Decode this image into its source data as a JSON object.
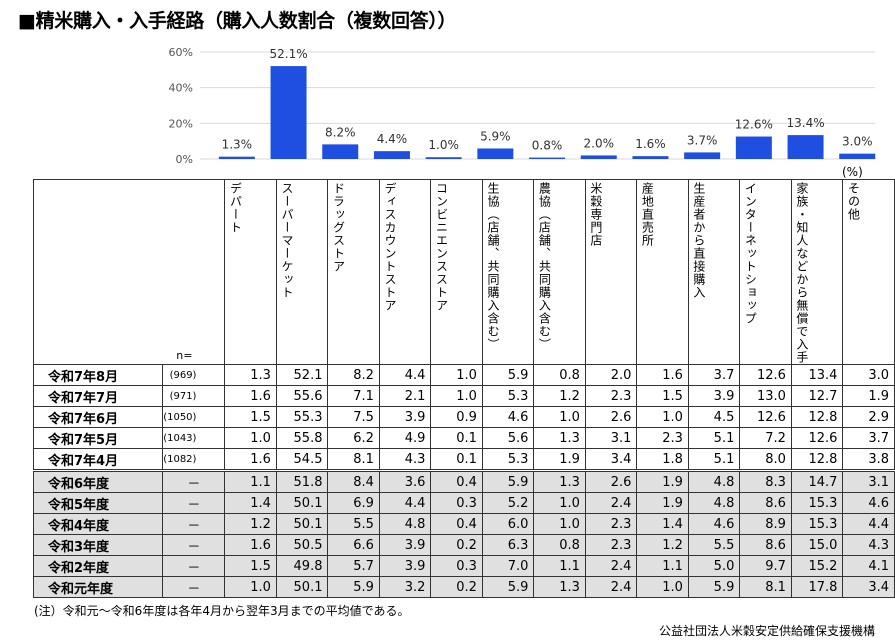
{
  "title": "■精米購入・入手経路（購入人数割合（複数回答））",
  "unit": "(%)",
  "n_label": "n=",
  "chart_data": {
    "type": "bar",
    "categories": [
      "デパート",
      "スーパーマーケット",
      "ドラッグストア",
      "ディスカウントストア",
      "コンビニエンスストア",
      "生協（店舗、共同購入含む）",
      "農協（店舗、共同購入含む）",
      "米穀専門店",
      "産地直売所",
      "生産者から直接購入",
      "インターネットショップ",
      "家族・知人などから無償で入手",
      "その他"
    ],
    "values": [
      1.3,
      52.1,
      8.2,
      4.4,
      1.0,
      5.9,
      0.8,
      2.0,
      1.6,
      3.7,
      12.6,
      13.4,
      3.0
    ],
    "value_labels": [
      "1.3%",
      "52.1%",
      "8.2%",
      "4.4%",
      "1.0%",
      "5.9%",
      "0.8%",
      "2.0%",
      "1.6%",
      "3.7%",
      "12.6%",
      "13.4%",
      "3.0%"
    ],
    "yticks": [
      "0%",
      "20%",
      "40%",
      "60%"
    ],
    "ylim": [
      0,
      60
    ],
    "bar_color": "#1f4fe0",
    "grid": true
  },
  "headers": [
    "デパート",
    "スーパーマーケット",
    "ドラッグストア",
    "ディスカウントストア",
    "コンビニエンスストア",
    "生協\n（店舗、共同購入含む）",
    "農協\n（店舗、共同購入含む）",
    "米穀専門店",
    "産地直売所",
    "生産者から直接購入",
    "インターネットショップ",
    "家族・知人などから\n無償で入手",
    "その他"
  ],
  "rows": [
    {
      "label": "令和7年8月",
      "n": "(969)",
      "values": [
        "1.3",
        "52.1",
        "8.2",
        "4.4",
        "1.0",
        "5.9",
        "0.8",
        "2.0",
        "1.6",
        "3.7",
        "12.6",
        "13.4",
        "3.0"
      ]
    },
    {
      "label": "令和7年7月",
      "n": "(971)",
      "values": [
        "1.6",
        "55.6",
        "7.1",
        "2.1",
        "1.0",
        "5.3",
        "1.2",
        "2.3",
        "1.5",
        "3.9",
        "13.0",
        "12.7",
        "1.9"
      ]
    },
    {
      "label": "令和7年6月",
      "n": "(1050)",
      "values": [
        "1.5",
        "55.3",
        "7.5",
        "3.9",
        "0.9",
        "4.6",
        "1.0",
        "2.6",
        "1.0",
        "4.5",
        "12.6",
        "12.8",
        "2.9"
      ]
    },
    {
      "label": "令和7年5月",
      "n": "(1043)",
      "values": [
        "1.0",
        "55.8",
        "6.2",
        "4.9",
        "0.1",
        "5.6",
        "1.3",
        "3.1",
        "2.3",
        "5.1",
        "7.2",
        "12.6",
        "3.7"
      ]
    },
    {
      "label": "令和7年4月",
      "n": "(1082)",
      "values": [
        "1.6",
        "54.5",
        "8.1",
        "4.3",
        "0.1",
        "5.3",
        "1.9",
        "3.4",
        "1.8",
        "5.1",
        "8.0",
        "12.8",
        "3.8"
      ]
    },
    {
      "label": "令和6年度",
      "n": "－",
      "values": [
        "1.1",
        "51.8",
        "8.4",
        "3.6",
        "0.4",
        "5.9",
        "1.3",
        "2.6",
        "1.9",
        "4.8",
        "8.3",
        "14.7",
        "3.1"
      ]
    },
    {
      "label": "令和5年度",
      "n": "－",
      "values": [
        "1.4",
        "50.1",
        "6.9",
        "4.4",
        "0.3",
        "5.2",
        "1.0",
        "2.4",
        "1.9",
        "4.8",
        "8.6",
        "15.3",
        "4.6"
      ]
    },
    {
      "label": "令和4年度",
      "n": "－",
      "values": [
        "1.2",
        "50.1",
        "5.5",
        "4.8",
        "0.4",
        "6.0",
        "1.0",
        "2.3",
        "1.4",
        "4.6",
        "8.9",
        "15.3",
        "4.4"
      ]
    },
    {
      "label": "令和3年度",
      "n": "－",
      "values": [
        "1.6",
        "50.5",
        "6.6",
        "3.9",
        "0.2",
        "6.3",
        "0.8",
        "2.3",
        "1.2",
        "5.5",
        "8.6",
        "15.0",
        "4.3"
      ]
    },
    {
      "label": "令和2年度",
      "n": "－",
      "values": [
        "1.5",
        "49.8",
        "5.7",
        "3.9",
        "0.3",
        "7.0",
        "1.1",
        "2.4",
        "1.1",
        "5.0",
        "9.7",
        "15.2",
        "4.1"
      ]
    },
    {
      "label": "令和元年度",
      "n": "－",
      "values": [
        "1.0",
        "50.1",
        "5.9",
        "3.2",
        "0.2",
        "5.9",
        "1.3",
        "2.4",
        "1.0",
        "5.9",
        "8.1",
        "17.8",
        "3.4"
      ]
    }
  ],
  "note": "(注）令和元～令和6年度は各年4月から翌年3月までの平均値である。",
  "source": "公益社団法人米穀安定供給確保支援機構"
}
